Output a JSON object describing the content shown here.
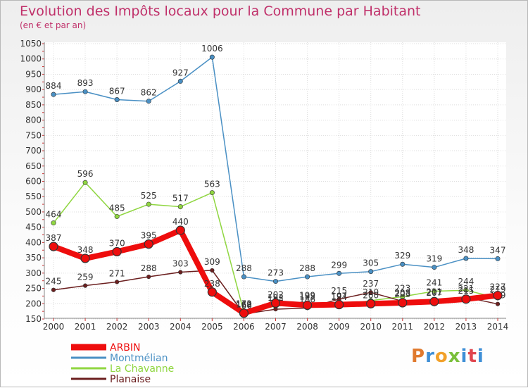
{
  "header": {
    "title": "Evolution des Impôts locaux pour la Commune par Habitant",
    "subtitle": "(en € et par an)"
  },
  "logo": {
    "text": "Proxiti",
    "colors": [
      "#e07a2e",
      "#3e8fd6",
      "#f2a12a",
      "#7abf3a",
      "#3e8fd6",
      "#e0464f",
      "#3e8fd6"
    ]
  },
  "chart_data": {
    "type": "line",
    "title": "Evolution des Impôts locaux pour la Commune par Habitant",
    "subtitle": "(en € et par an)",
    "xlabel": "",
    "ylabel": "",
    "ylim": [
      150,
      1050
    ],
    "yticks": [
      150,
      200,
      250,
      300,
      350,
      400,
      450,
      500,
      550,
      600,
      650,
      700,
      750,
      800,
      850,
      900,
      950,
      1000,
      1050
    ],
    "categories": [
      "2000",
      "2001",
      "2002",
      "2003",
      "2004",
      "2005",
      "2006",
      "2007",
      "2008",
      "2009",
      "2010",
      "2011",
      "2012",
      "2013",
      "2014"
    ],
    "grid": true,
    "legend_position": "bottom-left",
    "series": [
      {
        "name": "Montmélian",
        "color": "#4a90c4",
        "values": [
          884,
          893,
          867,
          862,
          927,
          1006,
          288,
          273,
          288,
          299,
          305,
          329,
          319,
          348,
          347
        ]
      },
      {
        "name": "La Chavanne",
        "color": "#8fd640",
        "values": [
          464,
          596,
          485,
          525,
          517,
          563,
          172,
          192,
          199,
          194,
          210,
          223,
          241,
          244,
          219
        ]
      },
      {
        "name": "Planaise",
        "color": "#6b1f1f",
        "values": [
          245,
          259,
          271,
          288,
          303,
          309,
          166,
          182,
          186,
          215,
          237,
          208,
          211,
          221,
          199
        ]
      },
      {
        "name": "ARBIN",
        "color": "#ee0d0d",
        "values": [
          387,
          348,
          370,
          395,
          440,
          238,
          169,
          202,
          195,
          197,
          200,
          203,
          207,
          215,
          227
        ]
      }
    ]
  }
}
